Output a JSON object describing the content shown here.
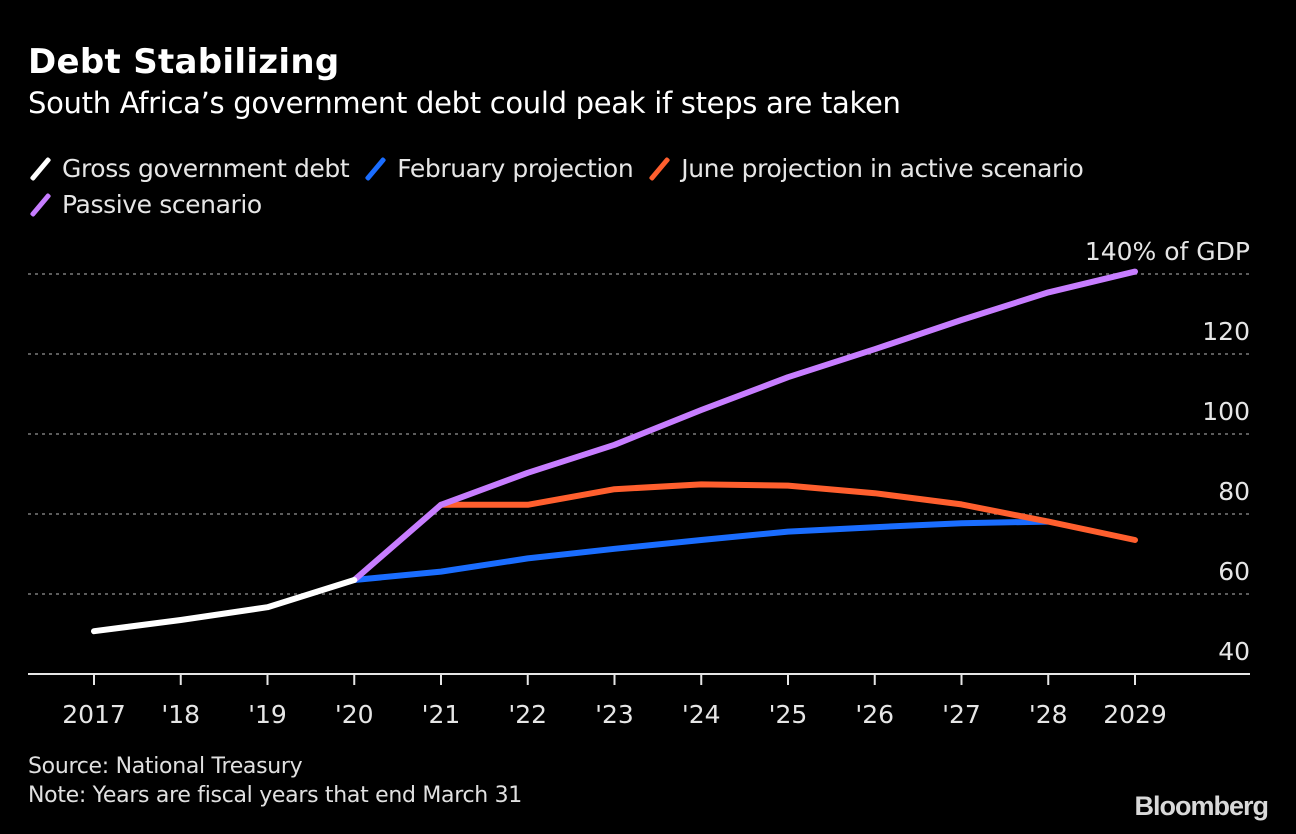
{
  "header": {
    "title": "Debt Stabilizing",
    "subtitle": "South Africa’s government debt could peak if steps are taken"
  },
  "legend": [
    {
      "label": "Gross government debt",
      "color": "#ffffff",
      "icon": "diagonal-line-swatch"
    },
    {
      "label": "February projection",
      "color": "#1a6dff",
      "icon": "diagonal-line-swatch"
    },
    {
      "label": "June projection in active scenario",
      "color": "#ff5f2e",
      "icon": "diagonal-line-swatch"
    },
    {
      "label": "Passive scenario",
      "color": "#c77dff",
      "icon": "diagonal-line-swatch"
    }
  ],
  "footer": {
    "source": "Source: National Treasury",
    "note": "Note: Years are fiscal years that end March 31",
    "brand": "Bloomberg"
  },
  "chart_data": {
    "type": "line",
    "title": "Debt Stabilizing",
    "subtitle": "South Africa’s government debt could peak if steps are taken",
    "xlabel": "",
    "ylabel": "% of GDP",
    "x": [
      2017,
      2018,
      2019,
      2020,
      2021,
      2022,
      2023,
      2024,
      2025,
      2026,
      2027,
      2028,
      2029
    ],
    "x_tick_labels": [
      "2017",
      "'18",
      "'19",
      "'20",
      "'21",
      "'22",
      "'23",
      "'24",
      "'25",
      "'26",
      "'27",
      "'28",
      "2029"
    ],
    "ylim": [
      40,
      145
    ],
    "y_ticks": [
      40,
      60,
      80,
      100,
      120,
      140
    ],
    "y_tick_labels": [
      "40",
      "60",
      "80",
      "100",
      "120",
      "140% of GDP"
    ],
    "y_axis_side": "right",
    "grid": "horizontal-dotted",
    "legend_position": "top-left",
    "series": [
      {
        "name": "Gross government debt",
        "color": "#ffffff",
        "x": [
          2017,
          2018,
          2019,
          2020
        ],
        "values": [
          50.7,
          53.5,
          56.7,
          63.5
        ]
      },
      {
        "name": "February projection",
        "color": "#1a6dff",
        "x": [
          2020,
          2021,
          2022,
          2023,
          2024,
          2025,
          2026,
          2027,
          2028
        ],
        "values": [
          63.5,
          65.6,
          68.9,
          71.3,
          73.5,
          75.6,
          76.7,
          77.7,
          78.1
        ]
      },
      {
        "name": "June projection in active scenario",
        "color": "#ff5f2e",
        "x": [
          2021,
          2022,
          2023,
          2024,
          2025,
          2026,
          2027,
          2028,
          2029
        ],
        "values": [
          82.3,
          82.3,
          86.2,
          87.4,
          87.1,
          85.2,
          82.4,
          78.1,
          73.5
        ]
      },
      {
        "name": "Passive scenario",
        "color": "#c77dff",
        "x": [
          2020,
          2021,
          2022,
          2023,
          2024,
          2025,
          2026,
          2027,
          2028,
          2029
        ],
        "values": [
          63.5,
          82.3,
          90.3,
          97.3,
          106.0,
          114.2,
          121.2,
          128.5,
          135.4,
          140.6
        ]
      }
    ]
  }
}
